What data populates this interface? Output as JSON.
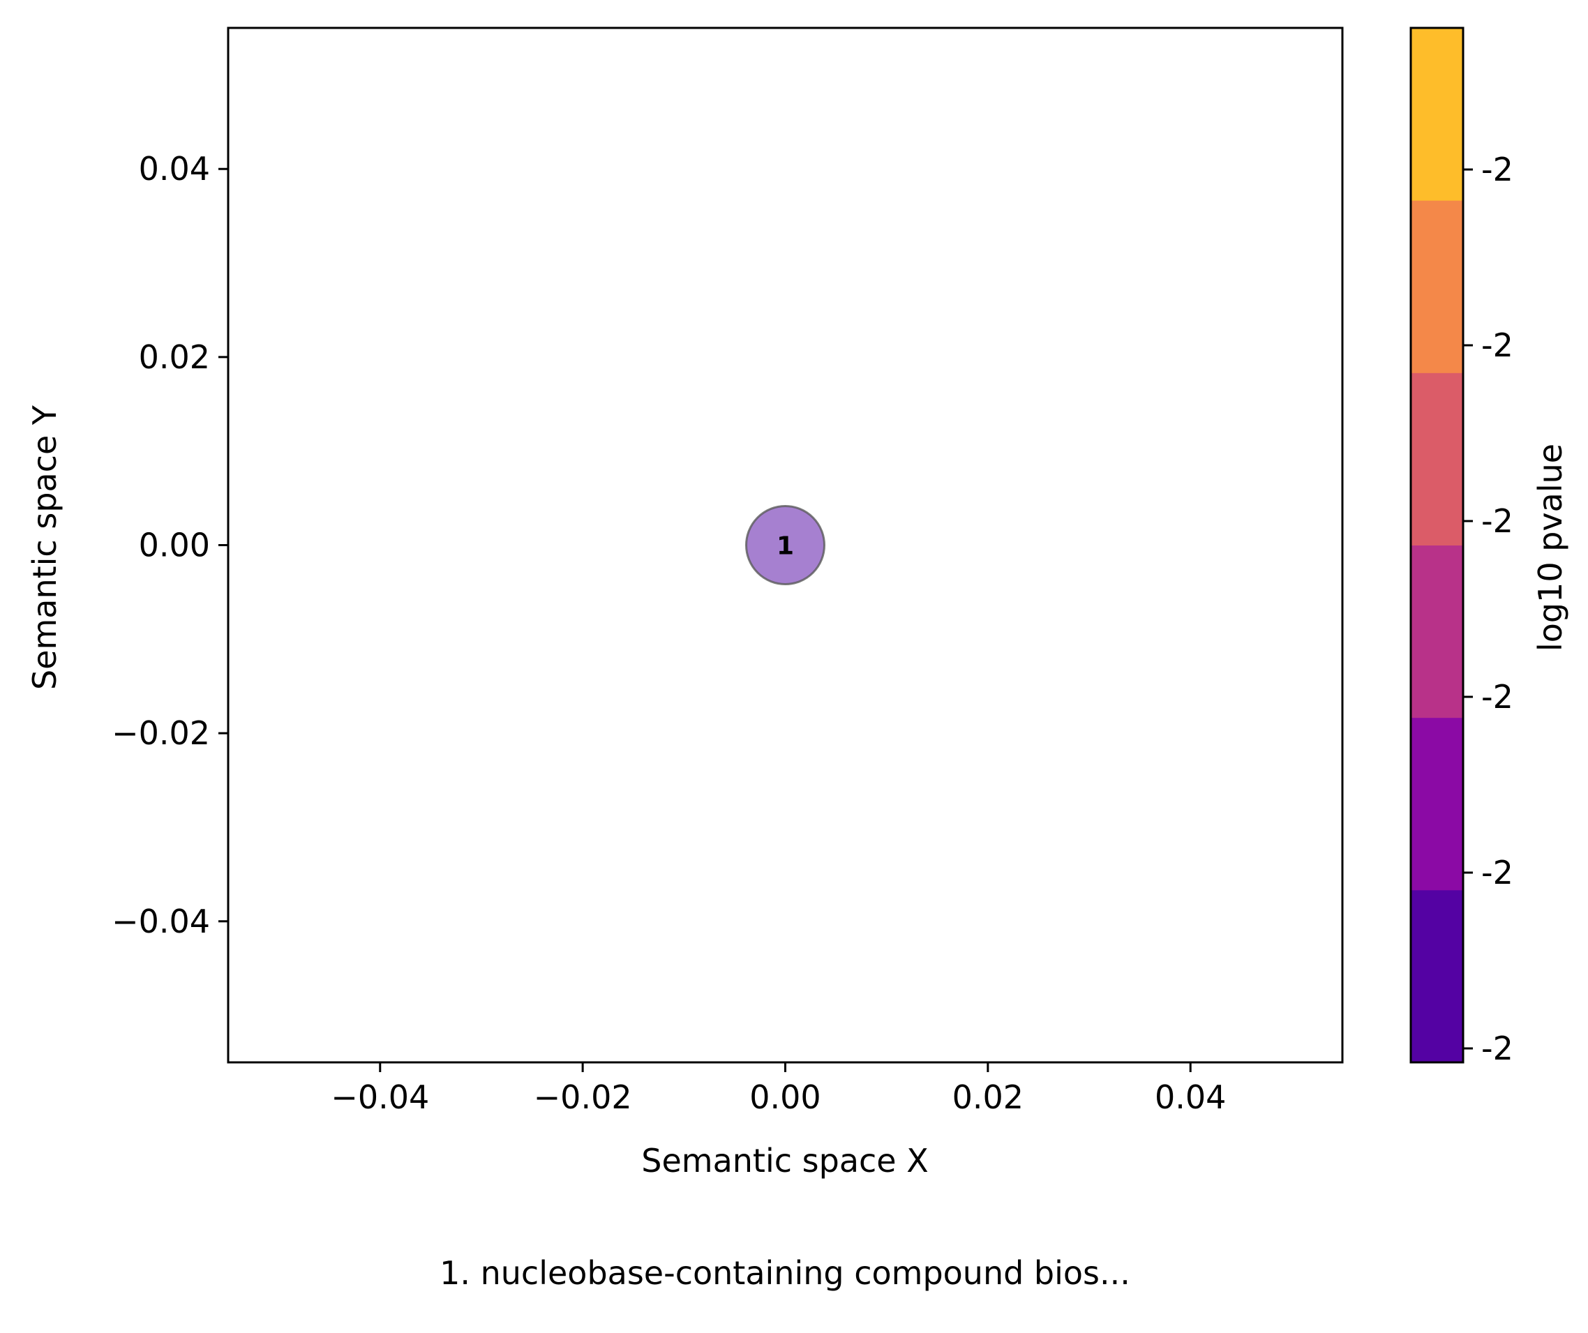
{
  "chart_data": {
    "type": "scatter",
    "xlabel": "Semantic space X",
    "ylabel": "Semantic space Y",
    "xlim": [
      -0.055,
      0.055
    ],
    "ylim": [
      -0.055,
      0.055
    ],
    "x_ticks": [
      -0.04,
      -0.02,
      0.0,
      0.02,
      0.04
    ],
    "x_tick_labels": [
      "−0.04",
      "−0.02",
      "0.00",
      "0.02",
      "0.04"
    ],
    "y_ticks": [
      0.04,
      0.02,
      0.0,
      -0.02,
      -0.04
    ],
    "y_tick_labels": [
      "0.04",
      "0.02",
      "0.00",
      "−0.02",
      "−0.04"
    ],
    "grid": false,
    "points": [
      {
        "x": 0.0,
        "y": 0.0,
        "label": "1",
        "color": "#a680d0"
      }
    ],
    "colorbar": {
      "label": "log10 pvalue",
      "colors": [
        "#5402a3",
        "#8b0aa5",
        "#b83289",
        "#db5c68",
        "#f48849",
        "#febd2a"
      ],
      "tick_labels": [
        "-2",
        "-2",
        "-2",
        "-2",
        "-2",
        "-2"
      ]
    },
    "footer": "1. nucleobase-containing compound bios..."
  }
}
